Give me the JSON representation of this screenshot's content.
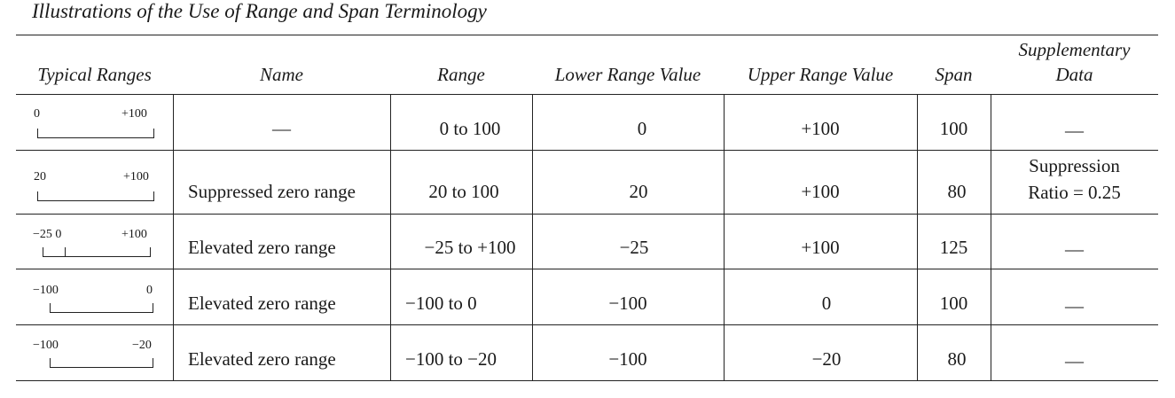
{
  "caption": "Illustrations of the Use of Range and Span Terminology",
  "headers": {
    "typical_ranges": "Typical Ranges",
    "name": "Name",
    "range": "Range",
    "lower": "Lower Range Value",
    "upper": "Upper Range Value",
    "span": "Span",
    "supp_line1": "Supplementary",
    "supp_line2": "Data"
  },
  "rows": [
    {
      "diagram": {
        "left_label": "0",
        "right_label": "+100",
        "mid_label": ""
      },
      "name": "—",
      "range": "0 to 100",
      "lower": "0",
      "upper": "+100",
      "span": "100",
      "supp_line1": "—",
      "supp_line2": ""
    },
    {
      "diagram": {
        "left_label": "20",
        "right_label": "+100",
        "mid_label": ""
      },
      "name": "Suppressed zero range",
      "range": "20 to 100",
      "lower": "20",
      "upper": "+100",
      "span": "80",
      "supp_line1": "Suppression",
      "supp_line2": "Ratio = 0.25"
    },
    {
      "diagram": {
        "left_label": "−25 0",
        "right_label": "+100",
        "mid_label": ""
      },
      "name": "Elevated zero range",
      "range": "−25 to +100",
      "lower": "−25",
      "upper": "+100",
      "span": "125",
      "supp_line1": "—",
      "supp_line2": ""
    },
    {
      "diagram": {
        "left_label": "−100",
        "right_label": "0",
        "mid_label": ""
      },
      "name": "Elevated zero range",
      "range": "−100 to 0",
      "lower": "−100",
      "upper": "0",
      "span": "100",
      "supp_line1": "—",
      "supp_line2": ""
    },
    {
      "diagram": {
        "left_label": "−100",
        "right_label": "−20",
        "mid_label": ""
      },
      "name": "Elevated zero range",
      "range": "−100 to −20",
      "lower": "−100",
      "upper": "−20",
      "span": "80",
      "supp_line1": "—",
      "supp_line2": ""
    }
  ]
}
